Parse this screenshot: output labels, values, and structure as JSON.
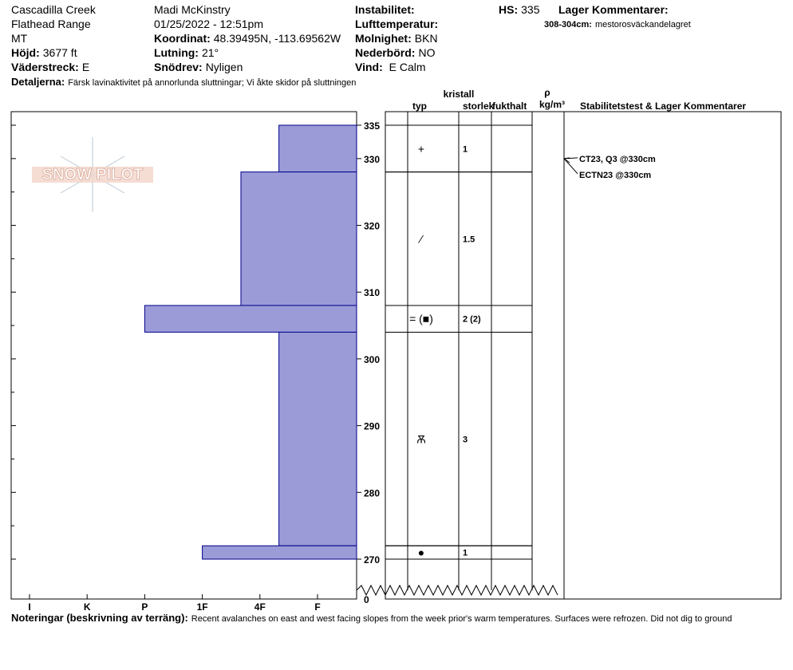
{
  "header": {
    "col1": [
      {
        "value": "Cascadilla Creek"
      },
      {
        "value": "Flathead Range"
      },
      {
        "value": "MT"
      },
      {
        "label": "Höjd:",
        "value": "3677 ft"
      },
      {
        "label": "Väderstreck:",
        "value": "E"
      }
    ],
    "col2": [
      {
        "value": "Madi  McKinstry"
      },
      {
        "value": "01/25/2022 - 12:51pm"
      },
      {
        "label": "Koordinat:",
        "value": "48.39495N, -113.69562W"
      },
      {
        "label": "Lutning:",
        "value": "21°"
      },
      {
        "label": "Snödrev:",
        "value": "Nyligen"
      }
    ],
    "col3": [
      {
        "label": "Instabilitet:",
        "value": ""
      },
      {
        "label": "Lufttemperatur:",
        "value": ""
      },
      {
        "label": "Molnighet:",
        "value": "BKN"
      },
      {
        "label": "Nederbörd:",
        "value": "NO"
      },
      {
        "label": "Vind:",
        "value": " E Calm"
      }
    ],
    "hs": {
      "label": "HS:",
      "value": "335"
    },
    "layer_comments_title": "Lager Kommentarer:",
    "layer_comment": {
      "label": "308-304cm:",
      "value": "mestorosväckandelagret"
    },
    "details": {
      "label": "Detaljerna:",
      "value": "Färsk lavinaktivitet på annorlunda sluttningar; Vi åkte skidor på sluttningen"
    }
  },
  "logo": "SNOW PILOT",
  "columns": {
    "crystal": "kristall",
    "type": "typ",
    "size": "storlek",
    "moisture": "fukthalt",
    "rho": "ρ",
    "density_unit": "kg/m³",
    "stability": "Stabilitetstest & Lager Kommentarer"
  },
  "profile": {
    "depth_ticks": [
      270,
      280,
      290,
      300,
      310,
      320,
      330,
      335
    ],
    "depth_minor_ticks": [
      275,
      285,
      295,
      305,
      315,
      325
    ],
    "ground_label": "0",
    "hardness_ticks": [
      {
        "value": 6,
        "label": "I"
      },
      {
        "value": 5,
        "label": "K"
      },
      {
        "value": 4,
        "label": "P"
      },
      {
        "value": 3,
        "label": "1F"
      },
      {
        "value": 2,
        "label": "4F"
      },
      {
        "value": 1,
        "label": "F"
      }
    ],
    "layers": [
      {
        "top": 335,
        "bottom": 328,
        "hardness": 1.67,
        "form": "+",
        "size": "1"
      },
      {
        "top": 328,
        "bottom": 308,
        "hardness": 2.33,
        "form": "⁄",
        "size": "1.5"
      },
      {
        "top": 308,
        "bottom": 304,
        "hardness": 4,
        "form": "= (■)",
        "size": "2 (2)"
      },
      {
        "top": 304,
        "bottom": 272,
        "hardness": 1.67,
        "form": "Ѫ",
        "size": "3"
      },
      {
        "top": 272,
        "bottom": 270,
        "hardness": 3,
        "form": "●",
        "size": "1"
      }
    ],
    "tests": [
      {
        "depth": 330,
        "text": "CT23, Q3 @330cm"
      },
      {
        "depth": 330,
        "text": "ECTN23 @330cm"
      }
    ]
  },
  "notes": {
    "label": "Noteringar (beskrivning av terräng):",
    "value": "Recent avalanches on east and west facing slopes from the week prior's warm temperatures. Surfaces were refrozen. Did not dig to ground"
  }
}
